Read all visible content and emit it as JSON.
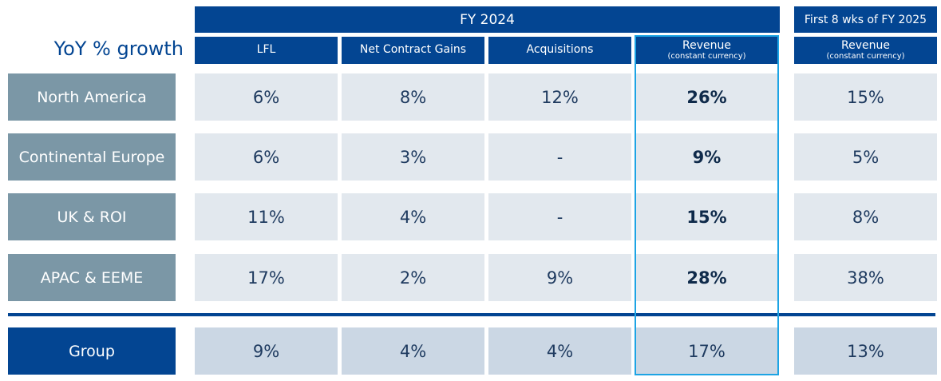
{
  "header": {
    "fy_label": "FY 2024",
    "first_label": "First 8 wks of FY 2025"
  },
  "title": "YoY % growth",
  "columns": [
    {
      "label": "LFL",
      "sub": ""
    },
    {
      "label": "Net Contract Gains",
      "sub": ""
    },
    {
      "label": "Acquisitions",
      "sub": ""
    },
    {
      "label": "Revenue",
      "sub": "(constant currency)"
    },
    {
      "label": "Revenue",
      "sub": "(constant currency)"
    }
  ],
  "rows": [
    {
      "label": "North America",
      "values": [
        "6%",
        "8%",
        "12%",
        "26%",
        "15%"
      ]
    },
    {
      "label": "Continental Europe",
      "values": [
        "6%",
        "3%",
        "-",
        "9%",
        "5%"
      ]
    },
    {
      "label": "UK & ROI",
      "values": [
        "11%",
        "4%",
        "-",
        "15%",
        "8%"
      ]
    },
    {
      "label": "APAC & EEME",
      "values": [
        "17%",
        "2%",
        "9%",
        "28%",
        "38%"
      ]
    }
  ],
  "group": {
    "label": "Group",
    "values": [
      "9%",
      "4%",
      "4%",
      "17%",
      "13%"
    ]
  },
  "colors": {
    "brand": "#034592",
    "label_bg": "#7b97a6",
    "cell_bg": "#e2e8ee",
    "group_cell_bg": "#cbd7e4",
    "highlight": "#1da4e4"
  }
}
